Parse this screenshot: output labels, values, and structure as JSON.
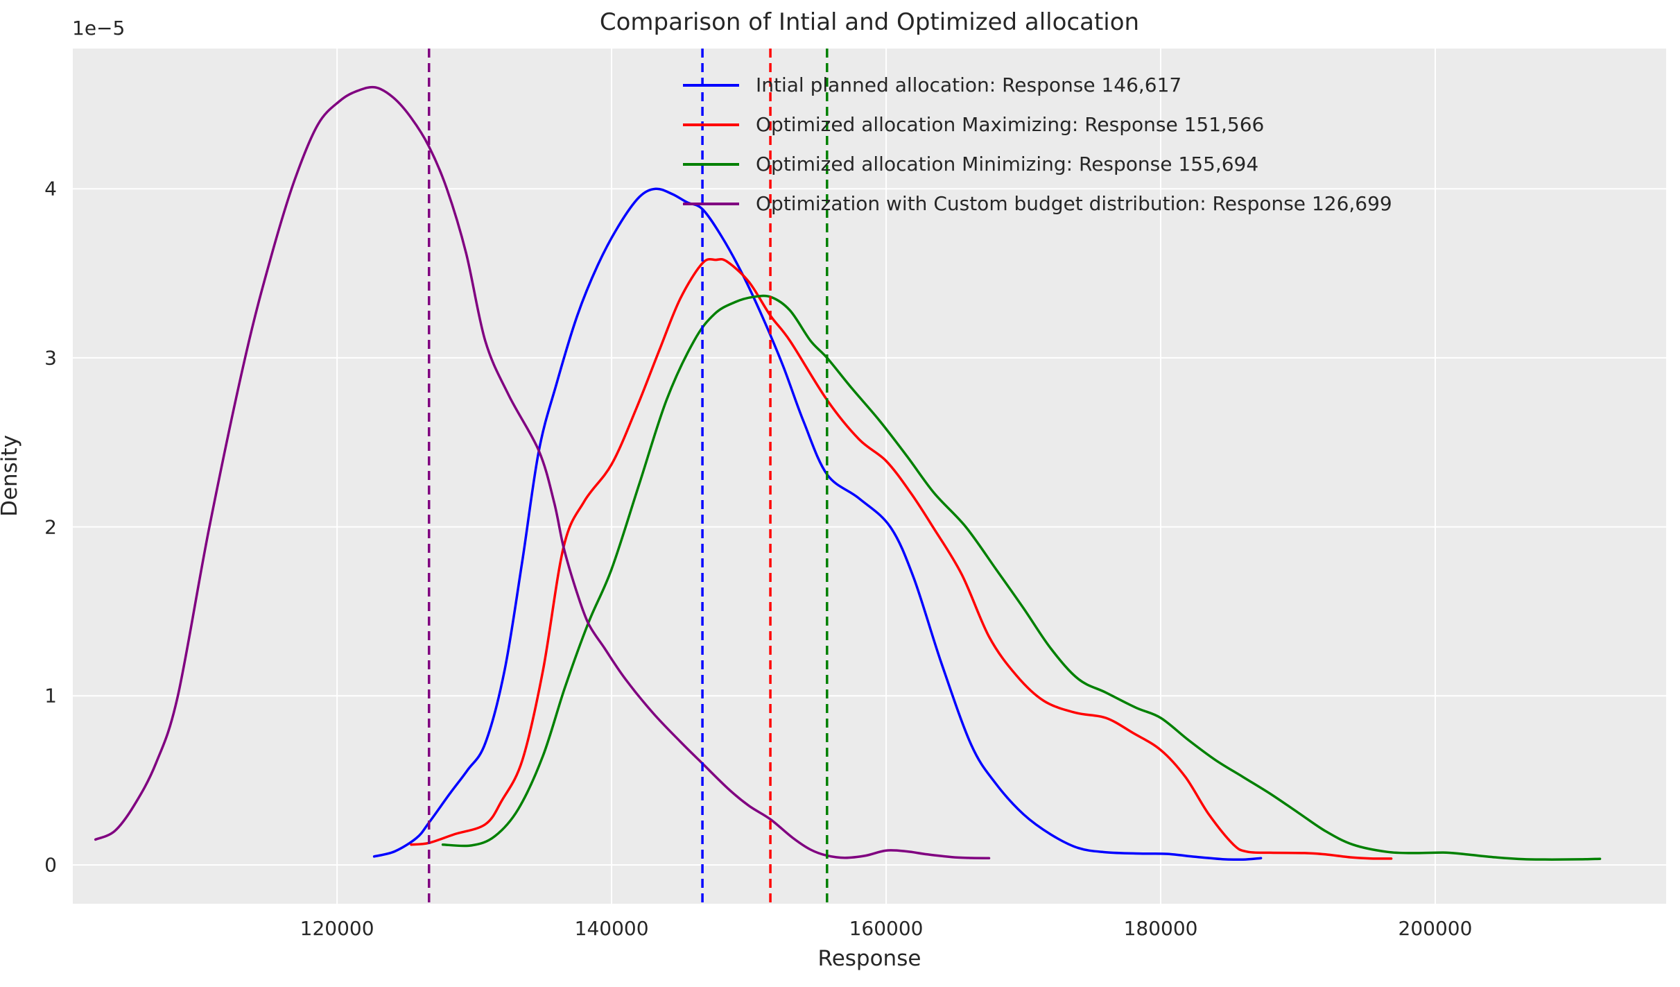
{
  "title": "Comparison of Intial and Optimized allocation",
  "axes": {
    "xlabel": "Response",
    "ylabel": "Density",
    "offset_text": "1e−5"
  },
  "colors": {
    "figure_background": "#ffffff",
    "plot_background": "#ebebeb",
    "grid": "#ffffff",
    "text": "#262626",
    "initial": "#0000ff",
    "maximizing": "#ff0000",
    "minimizing": "#008000",
    "custom": "#800080"
  },
  "legend": {
    "items": [
      {
        "label": "Intial planned allocation: Response 146,617",
        "color": "#0000ff"
      },
      {
        "label": "Optimized allocation Maximizing: Response 151,566",
        "color": "#ff0000"
      },
      {
        "label": "Optimized allocation Minimizing: Response 155,694",
        "color": "#008000"
      },
      {
        "label": "Optimization with Custom budget distribution: Response 126,699",
        "color": "#800080"
      }
    ]
  },
  "chart_data": {
    "type": "line",
    "subtype": "kde-density",
    "title": "Comparison of Intial and Optimized allocation",
    "xlabel": "Response",
    "ylabel": "Density",
    "y_unit_multiplier": "1e-5",
    "xlim": [
      100750,
      216820
    ],
    "ylim": [
      -0.23,
      4.83
    ],
    "x_ticks": [
      120000,
      140000,
      160000,
      180000,
      200000
    ],
    "y_ticks": [
      0,
      1,
      2,
      3,
      4
    ],
    "grid": true,
    "legend_position": "upper center",
    "series": [
      {
        "name": "Intial planned allocation",
        "response_mean": 146617,
        "color": "#0000ff",
        "points": [
          [
            122700,
            0.05
          ],
          [
            124200,
            0.08
          ],
          [
            125800,
            0.16
          ],
          [
            126699,
            0.25
          ],
          [
            128200,
            0.42
          ],
          [
            129500,
            0.56
          ],
          [
            130800,
            0.72
          ],
          [
            132200,
            1.15
          ],
          [
            133500,
            1.8
          ],
          [
            134700,
            2.45
          ],
          [
            136000,
            2.85
          ],
          [
            137500,
            3.25
          ],
          [
            139000,
            3.55
          ],
          [
            140500,
            3.78
          ],
          [
            142000,
            3.95
          ],
          [
            143200,
            4.0
          ],
          [
            144400,
            3.97
          ],
          [
            145500,
            3.92
          ],
          [
            146617,
            3.88
          ],
          [
            148000,
            3.72
          ],
          [
            149500,
            3.5
          ],
          [
            151000,
            3.24
          ],
          [
            152500,
            2.95
          ],
          [
            154000,
            2.62
          ],
          [
            155700,
            2.31
          ],
          [
            158000,
            2.17
          ],
          [
            160300,
            2.0
          ],
          [
            162000,
            1.7
          ],
          [
            164000,
            1.2
          ],
          [
            166200,
            0.71
          ],
          [
            168000,
            0.48
          ],
          [
            170000,
            0.3
          ],
          [
            172000,
            0.18
          ],
          [
            174000,
            0.1
          ],
          [
            176000,
            0.075
          ],
          [
            178500,
            0.067
          ],
          [
            180500,
            0.065
          ],
          [
            182500,
            0.048
          ],
          [
            184500,
            0.034
          ],
          [
            186000,
            0.032
          ],
          [
            187300,
            0.04
          ]
        ]
      },
      {
        "name": "Optimized allocation Maximizing",
        "response_mean": 151566,
        "color": "#ff0000",
        "points": [
          [
            125400,
            0.12
          ],
          [
            126699,
            0.13
          ],
          [
            128500,
            0.18
          ],
          [
            130800,
            0.24
          ],
          [
            132000,
            0.38
          ],
          [
            133500,
            0.62
          ],
          [
            135000,
            1.15
          ],
          [
            136500,
            1.88
          ],
          [
            138000,
            2.15
          ],
          [
            140000,
            2.37
          ],
          [
            141800,
            2.7
          ],
          [
            143500,
            3.05
          ],
          [
            145000,
            3.35
          ],
          [
            146617,
            3.56
          ],
          [
            147600,
            3.58
          ],
          [
            148400,
            3.57
          ],
          [
            150000,
            3.45
          ],
          [
            151566,
            3.25
          ],
          [
            153000,
            3.1
          ],
          [
            155700,
            2.75
          ],
          [
            158000,
            2.52
          ],
          [
            160000,
            2.39
          ],
          [
            161800,
            2.2
          ],
          [
            163400,
            2.0
          ],
          [
            165500,
            1.72
          ],
          [
            167500,
            1.35
          ],
          [
            169500,
            1.12
          ],
          [
            171500,
            0.97
          ],
          [
            173800,
            0.9
          ],
          [
            176000,
            0.87
          ],
          [
            178000,
            0.78
          ],
          [
            180000,
            0.68
          ],
          [
            181800,
            0.52
          ],
          [
            183500,
            0.3
          ],
          [
            185300,
            0.12
          ],
          [
            186300,
            0.078
          ],
          [
            188000,
            0.072
          ],
          [
            190500,
            0.07
          ],
          [
            192000,
            0.062
          ],
          [
            193800,
            0.045
          ],
          [
            195300,
            0.038
          ],
          [
            196800,
            0.037
          ]
        ]
      },
      {
        "name": "Optimized allocation Minimizing",
        "response_mean": 155694,
        "color": "#008000",
        "points": [
          [
            127700,
            0.12
          ],
          [
            129800,
            0.115
          ],
          [
            131500,
            0.17
          ],
          [
            133200,
            0.33
          ],
          [
            135000,
            0.645
          ],
          [
            136600,
            1.05
          ],
          [
            138300,
            1.43
          ],
          [
            140000,
            1.75
          ],
          [
            142000,
            2.25
          ],
          [
            144000,
            2.75
          ],
          [
            146000,
            3.1
          ],
          [
            147500,
            3.26
          ],
          [
            149000,
            3.33
          ],
          [
            150300,
            3.36
          ],
          [
            151600,
            3.36
          ],
          [
            153000,
            3.28
          ],
          [
            154500,
            3.1
          ],
          [
            155694,
            3.0
          ],
          [
            157500,
            2.82
          ],
          [
            159500,
            2.63
          ],
          [
            161500,
            2.42
          ],
          [
            163500,
            2.2
          ],
          [
            165800,
            2.0
          ],
          [
            168000,
            1.75
          ],
          [
            170000,
            1.52
          ],
          [
            172000,
            1.28
          ],
          [
            174000,
            1.1
          ],
          [
            176000,
            1.02
          ],
          [
            178200,
            0.93
          ],
          [
            180000,
            0.87
          ],
          [
            182000,
            0.74
          ],
          [
            184000,
            0.62
          ],
          [
            186000,
            0.52
          ],
          [
            188000,
            0.42
          ],
          [
            190000,
            0.31
          ],
          [
            192000,
            0.2
          ],
          [
            194000,
            0.12
          ],
          [
            196500,
            0.077
          ],
          [
            198500,
            0.07
          ],
          [
            200800,
            0.073
          ],
          [
            202500,
            0.06
          ],
          [
            204500,
            0.044
          ],
          [
            206500,
            0.034
          ],
          [
            208500,
            0.032
          ],
          [
            210500,
            0.033
          ],
          [
            212000,
            0.036
          ]
        ]
      },
      {
        "name": "Optimization with Custom budget distribution",
        "response_mean": 126699,
        "color": "#800080",
        "points": [
          [
            102400,
            0.15
          ],
          [
            103800,
            0.2
          ],
          [
            105200,
            0.35
          ],
          [
            106800,
            0.6
          ],
          [
            108400,
            1.0
          ],
          [
            110700,
            2.0
          ],
          [
            113300,
            3.0
          ],
          [
            115200,
            3.6
          ],
          [
            116900,
            4.05
          ],
          [
            118600,
            4.38
          ],
          [
            120200,
            4.52
          ],
          [
            121500,
            4.58
          ],
          [
            122800,
            4.6
          ],
          [
            124100,
            4.54
          ],
          [
            125400,
            4.42
          ],
          [
            126699,
            4.25
          ],
          [
            128000,
            4.0
          ],
          [
            129400,
            3.62
          ],
          [
            130800,
            3.1
          ],
          [
            132500,
            2.78
          ],
          [
            134700,
            2.45
          ],
          [
            135800,
            2.15
          ],
          [
            136500,
            1.88
          ],
          [
            137400,
            1.63
          ],
          [
            138300,
            1.43
          ],
          [
            139500,
            1.28
          ],
          [
            141000,
            1.1
          ],
          [
            143000,
            0.9
          ],
          [
            145000,
            0.73
          ],
          [
            146617,
            0.6
          ],
          [
            148500,
            0.45
          ],
          [
            150000,
            0.35
          ],
          [
            151566,
            0.27
          ],
          [
            153200,
            0.16
          ],
          [
            154500,
            0.09
          ],
          [
            155694,
            0.055
          ],
          [
            157000,
            0.042
          ],
          [
            158500,
            0.055
          ],
          [
            160000,
            0.085
          ],
          [
            161500,
            0.08
          ],
          [
            163000,
            0.062
          ],
          [
            164800,
            0.046
          ],
          [
            166200,
            0.041
          ],
          [
            167500,
            0.04
          ]
        ]
      }
    ],
    "mean_lines": [
      {
        "value": 146617,
        "color": "#0000ff",
        "style": "dashed"
      },
      {
        "value": 151566,
        "color": "#ff0000",
        "style": "dashed"
      },
      {
        "value": 155694,
        "color": "#008000",
        "style": "dashed"
      },
      {
        "value": 126699,
        "color": "#800080",
        "style": "dashed"
      }
    ]
  }
}
